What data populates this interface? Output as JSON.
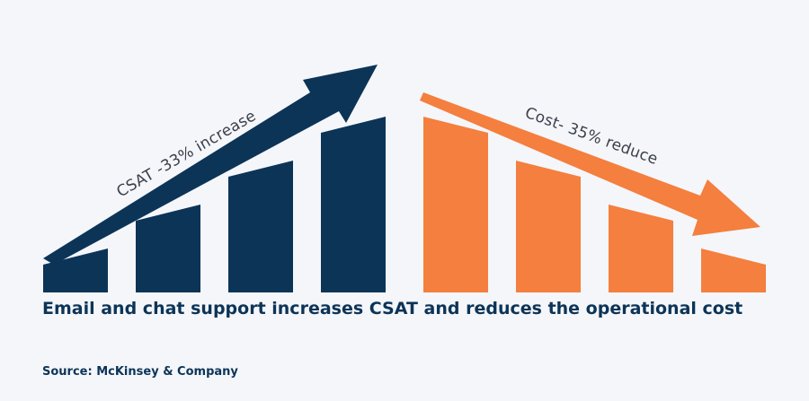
{
  "chart_data": {
    "type": "bar",
    "series": [
      {
        "name": "CSAT -33% increase",
        "color": "#0c3457",
        "values": [
          1,
          2,
          3,
          4
        ]
      },
      {
        "name": "Cost- 35% reduce",
        "color": "#f47f3e",
        "values": [
          4,
          3,
          2,
          1
        ]
      }
    ],
    "annotations": {
      "left_arrow": "CSAT -33% increase",
      "right_arrow": "Cost- 35% reduce"
    },
    "title": "Email and chat support increases CSAT and reduces the operational cost",
    "source": "Source: McKinsey & Company"
  }
}
